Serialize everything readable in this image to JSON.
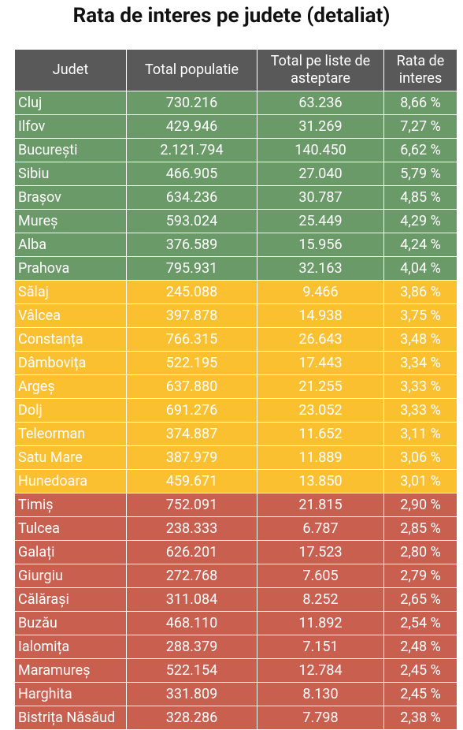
{
  "title": "Rata de interes pe judete (detaliat)",
  "table": {
    "header": [
      "Judet",
      "Total populatie",
      "Total pe liste de asteptare",
      "Rata de interes"
    ],
    "rows": [
      [
        "Cluj",
        "730.216",
        "63.236",
        "8,66 %"
      ],
      [
        "Ilfov",
        "429.946",
        "31.269",
        "7,27 %"
      ],
      [
        "București",
        "2.121.794",
        "140.450",
        "6,62 %"
      ],
      [
        "Sibiu",
        "466.905",
        "27.040",
        "5,79 %"
      ],
      [
        "Brașov",
        "634.236",
        "30.787",
        "4,85 %"
      ],
      [
        "Mureș",
        "593.024",
        "25.449",
        "4,29 %"
      ],
      [
        "Alba",
        "376.589",
        "15.956",
        "4,24 %"
      ],
      [
        "Prahova",
        "795.931",
        "32.163",
        "4,04 %"
      ],
      [
        "Sălaj",
        "245.088",
        "9.466",
        "3,86 %"
      ],
      [
        "Vâlcea",
        "397.878",
        "14.938",
        "3,75 %"
      ],
      [
        "Constanța",
        "766.315",
        "26.643",
        "3,48 %"
      ],
      [
        "Dâmbovița",
        "522.195",
        "17.443",
        "3,34 %"
      ],
      [
        "Argeș",
        "637.880",
        "21.255",
        "3,33 %"
      ],
      [
        "Dolj",
        "691.276",
        "23.052",
        "3,33 %"
      ],
      [
        "Teleorman",
        "374.887",
        "11.652",
        "3,11 %"
      ],
      [
        "Satu Mare",
        "387.979",
        "11.889",
        "3,06 %"
      ],
      [
        "Hunedoara",
        "459.671",
        "13.850",
        "3,01 %"
      ],
      [
        "Timiș",
        "752.091",
        "21.815",
        "2,90 %"
      ],
      [
        "Tulcea",
        "238.333",
        "6.787",
        "2,85 %"
      ],
      [
        "Galați",
        "626.201",
        "17.523",
        "2,80 %"
      ],
      [
        "Giurgiu",
        "272.768",
        "7.605",
        "2,79 %"
      ],
      [
        "Călărași",
        "311.084",
        "8.252",
        "2,65 %"
      ],
      [
        "Buzău",
        "468.110",
        "11.892",
        "2,54 %"
      ],
      [
        "Ialomița",
        "288.379",
        "7.151",
        "2,48 %"
      ],
      [
        "Maramureș",
        "522.154",
        "12.784",
        "2,45 %"
      ],
      [
        "Harghita",
        "331.809",
        "8.130",
        "2,45 %"
      ],
      [
        "Bistrița Năsăud",
        "328.286",
        "7.798",
        "2,38 %"
      ]
    ],
    "row_colors": [
      "#6b9a69",
      "#6b9a69",
      "#6b9a69",
      "#6b9a69",
      "#6b9a69",
      "#6b9a69",
      "#6b9a69",
      "#6b9a69",
      "#fbc02f",
      "#fbc02f",
      "#fbc02f",
      "#fbc02f",
      "#fbc02f",
      "#fbc02f",
      "#fbc02f",
      "#fbc02f",
      "#fbc02f",
      "#c95f4f",
      "#c95f4f",
      "#c95f4f",
      "#c95f4f",
      "#c95f4f",
      "#c95f4f",
      "#c95f4f",
      "#c95f4f",
      "#c95f4f",
      "#c95f4f"
    ]
  }
}
